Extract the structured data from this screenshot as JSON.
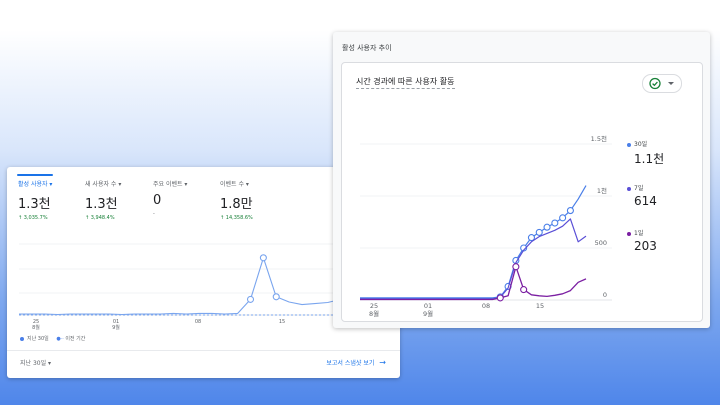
{
  "left_card": {
    "metrics": [
      {
        "label": "활성 사용자 ▾",
        "value": "1.3천",
        "change": "↑ 3,035.7%"
      },
      {
        "label": "새 사용자 수 ▾",
        "value": "1.3천",
        "change": "↑ 3,948.4%"
      },
      {
        "label": "주요 이벤트 ▾",
        "value": "0",
        "change": "-"
      },
      {
        "label": "이벤트 수 ▾",
        "value": "1.8만",
        "change": "↑ 14,358.6%"
      }
    ],
    "legend": {
      "current": "지난 30일",
      "previous": "이전 기간"
    },
    "date_range": "지난 30일 ▾",
    "report_link": "보고서 스냅샷 보기",
    "x_ticks": [
      {
        "day": "25",
        "month": "8월"
      },
      {
        "day": "01",
        "month": "9월"
      },
      {
        "day": "08",
        "month": ""
      },
      {
        "day": "15",
        "month": ""
      }
    ],
    "chart_data": {
      "type": "line",
      "x": [
        1,
        2,
        3,
        4,
        5,
        6,
        7,
        8,
        9,
        10,
        11,
        12,
        13,
        14,
        15,
        16,
        17,
        18,
        19,
        20,
        21,
        22,
        23,
        24,
        25,
        26,
        27,
        28,
        29,
        30
      ],
      "series": [
        {
          "name": "지난 30일",
          "values": [
            2,
            2,
            2,
            1,
            2,
            2,
            2,
            2,
            1,
            2,
            2,
            2,
            3,
            2,
            3,
            3,
            2,
            3,
            30,
            110,
            35,
            25,
            20,
            22,
            24,
            30,
            35,
            50,
            65,
            80
          ]
        },
        {
          "name": "이전 기간",
          "values": [
            0,
            0,
            0,
            0,
            0,
            0,
            0,
            0,
            0,
            0,
            0,
            0,
            0,
            0,
            0,
            0,
            0,
            0,
            0,
            0,
            0,
            0,
            0,
            0,
            0,
            0,
            0,
            0,
            0,
            0
          ]
        }
      ],
      "ylim": [
        0,
        150
      ]
    }
  },
  "right_card": {
    "title": "활성 사용자 추이",
    "chart_title": "시간 경과에 따른 사용자 활동",
    "y_ticks": [
      "1.5천",
      "1천",
      "500",
      "0"
    ],
    "x_ticks": [
      {
        "day": "25",
        "month": "8월"
      },
      {
        "day": "01",
        "month": "9월"
      },
      {
        "day": "08",
        "month": ""
      },
      {
        "day": "15",
        "month": ""
      }
    ],
    "legend": [
      {
        "label": "30일",
        "value": "1.1천",
        "color": "#4a7fe8"
      },
      {
        "label": "7일",
        "value": "614",
        "color": "#5a4fd6"
      },
      {
        "label": "1일",
        "value": "203",
        "color": "#7b1fa2"
      }
    ],
    "chart_data": {
      "type": "line",
      "x": [
        1,
        2,
        3,
        4,
        5,
        6,
        7,
        8,
        9,
        10,
        11,
        12,
        13,
        14,
        15,
        16,
        17,
        18,
        19,
        20,
        21,
        22,
        23,
        24,
        25,
        26,
        27,
        28,
        29,
        30
      ],
      "series": [
        {
          "name": "30일",
          "values": [
            20,
            20,
            20,
            20,
            20,
            20,
            20,
            20,
            20,
            20,
            20,
            20,
            20,
            20,
            20,
            20,
            20,
            20,
            30,
            130,
            380,
            500,
            600,
            650,
            700,
            740,
            790,
            860,
            970,
            1100
          ]
        },
        {
          "name": "7일",
          "values": [
            10,
            10,
            10,
            10,
            10,
            10,
            10,
            10,
            10,
            10,
            10,
            10,
            10,
            10,
            10,
            10,
            10,
            10,
            25,
            115,
            360,
            480,
            560,
            610,
            640,
            670,
            710,
            780,
            560,
            614
          ]
        },
        {
          "name": "1일",
          "values": [
            5,
            5,
            5,
            5,
            5,
            5,
            5,
            5,
            5,
            5,
            5,
            5,
            5,
            5,
            5,
            5,
            5,
            5,
            20,
            40,
            320,
            100,
            50,
            40,
            35,
            45,
            60,
            90,
            170,
            203
          ]
        }
      ],
      "ylim": [
        0,
        1500
      ]
    }
  }
}
